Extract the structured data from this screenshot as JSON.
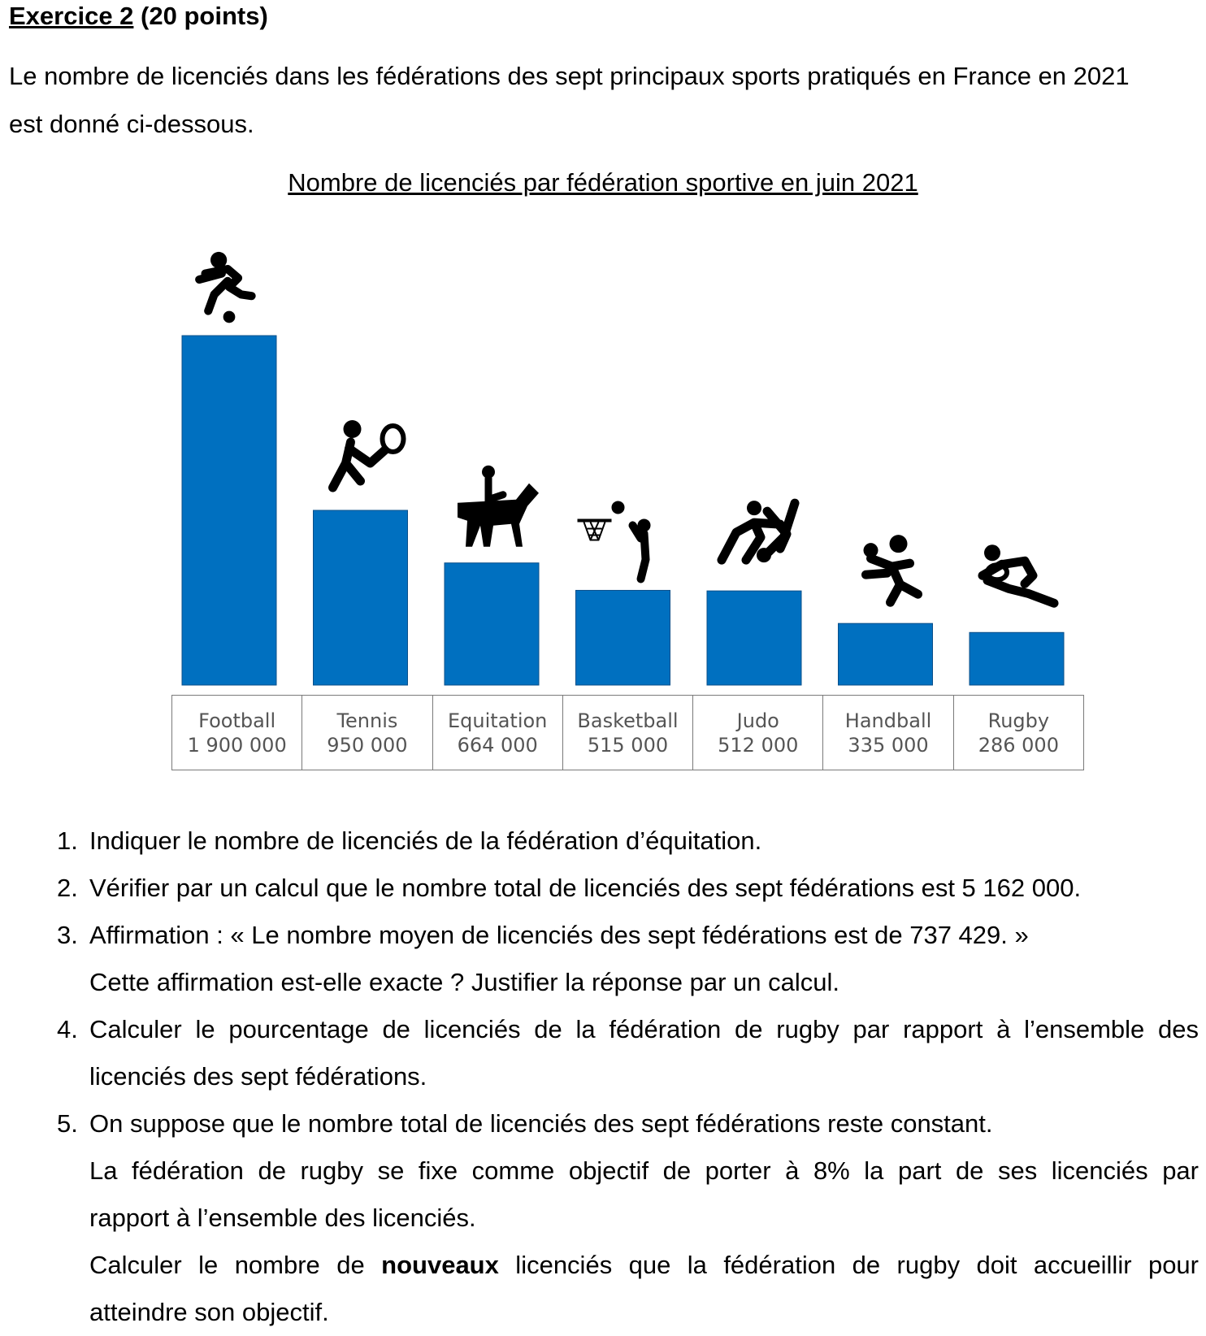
{
  "title": {
    "label": "Exercice 2",
    "points": "(20 points)"
  },
  "intro": {
    "line1": "Le nombre de licenciés dans les fédérations des sept principaux sports pratiqués en France en 2021",
    "line2": "est donné ci-dessous."
  },
  "chart_data": {
    "type": "bar",
    "title": "Nombre de licenciés par fédération sportive en juin 2021",
    "categories": [
      "Football",
      "Tennis",
      "Equitation",
      "Basketball",
      "Judo",
      "Handball",
      "Rugby"
    ],
    "values": [
      1900000,
      950000,
      664000,
      515000,
      512000,
      335000,
      286000
    ],
    "value_labels": [
      "1 900 000",
      "950 000",
      "664 000",
      "515 000",
      "512 000",
      "335 000",
      "286 000"
    ],
    "icons": [
      "football-icon",
      "tennis-icon",
      "equitation-icon",
      "basketball-icon",
      "judo-icon",
      "handball-icon",
      "rugby-icon"
    ],
    "bar_color": "#0070c0",
    "xlabel": "",
    "ylabel": ""
  },
  "questions": {
    "q1": {
      "num": "1.",
      "text": "Indiquer le nombre de licenciés de la fédération d’équitation."
    },
    "q2": {
      "num": "2.",
      "text": "Vérifier par un calcul que le nombre total de licenciés des sept fédérations est 5 162 000."
    },
    "q3": {
      "num": "3.",
      "line1": "Affirmation : « Le nombre moyen de licenciés des sept fédérations est de 737 429. »",
      "line2": "Cette affirmation est-elle exacte ? Justifier la réponse par un calcul."
    },
    "q4": {
      "num": "4.",
      "line1": "Calculer le pourcentage de licenciés de la fédération de rugby par rapport à l’ensemble des",
      "line2": "licenciés des sept fédérations."
    },
    "q5": {
      "num": "5.",
      "line1": "On suppose que le nombre total de licenciés des sept fédérations reste constant.",
      "line2": "La fédération de rugby se fixe comme objectif de porter à 8% la part de ses licenciés par",
      "line3": "rapport à l’ensemble des licenciés.",
      "line4_pre": "Calculer le nombre de ",
      "line4_bold": "nouveaux",
      "line4_post": " licenciés que la fédération de rugby doit accueillir pour",
      "line5": "atteindre son objectif."
    }
  }
}
